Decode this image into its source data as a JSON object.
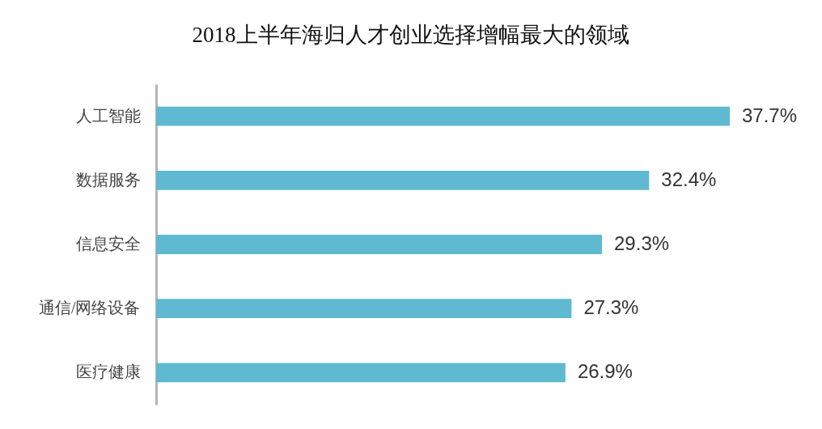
{
  "chart_data": {
    "type": "bar",
    "orientation": "horizontal",
    "title": "2018上半年海归人才创业选择增幅最大的领域",
    "categories": [
      "人工智能",
      "数据服务",
      "信息安全",
      "通信/网络设备",
      "医疗健康"
    ],
    "values": [
      37.7,
      32.4,
      29.3,
      27.3,
      26.9
    ],
    "value_labels": [
      "37.7%",
      "32.4%",
      "29.3%",
      "27.3%",
      "26.9%"
    ],
    "color": "#5fb9d1"
  }
}
